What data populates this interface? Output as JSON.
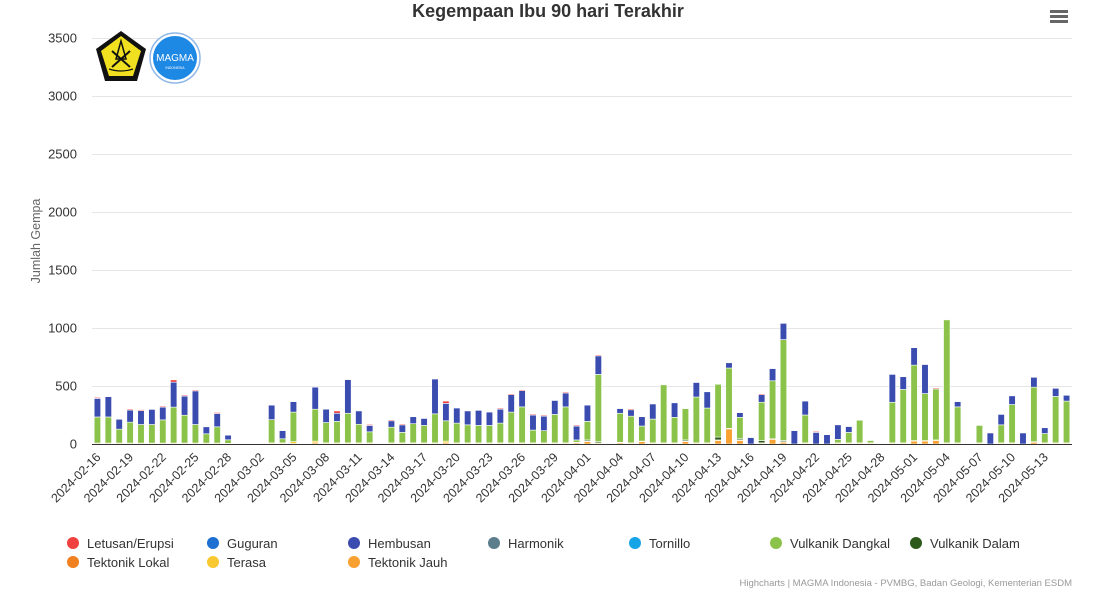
{
  "chart_data": {
    "type": "bar",
    "stacked": true,
    "title": "Kegempaan Ibu 90 hari Terakhir",
    "xlabel": "",
    "ylabel": "Jumlah Gempa",
    "ylim": [
      0,
      3500
    ],
    "yticks": [
      0,
      500,
      1000,
      1500,
      2000,
      2500,
      3000,
      3500
    ],
    "grid": true,
    "legend_position": "bottom",
    "start_date": "2024-02-16",
    "x_tick_labels": [
      "2024-02-16",
      "2024-02-19",
      "2024-02-22",
      "2024-02-25",
      "2024-02-28",
      "2024-03-02",
      "2024-03-05",
      "2024-03-08",
      "2024-03-11",
      "2024-03-14",
      "2024-03-17",
      "2024-03-20",
      "2024-03-23",
      "2024-03-26",
      "2024-03-29",
      "2024-04-01",
      "2024-04-04",
      "2024-04-07",
      "2024-04-10",
      "2024-04-13",
      "2024-04-16",
      "2024-04-19",
      "2024-04-22",
      "2024-04-25",
      "2024-04-28",
      "2024-05-01",
      "2024-05-04",
      "2024-05-07",
      "2024-05-10",
      "2024-05-13"
    ],
    "x_tick_interval_days": 3,
    "series": [
      {
        "name": "Letusan/Erupsi",
        "color": "#f04040",
        "values": [
          5,
          0,
          0,
          3,
          3,
          0,
          3,
          20,
          5,
          5,
          0,
          3,
          0,
          0,
          0,
          0,
          0,
          0,
          0,
          0,
          0,
          0,
          20,
          0,
          0,
          3,
          0,
          3,
          3,
          0,
          0,
          0,
          20,
          0,
          0,
          0,
          0,
          3,
          3,
          8,
          3,
          3,
          0,
          3,
          3,
          0,
          3,
          0,
          0,
          2,
          0,
          0,
          0,
          0,
          0,
          0,
          0,
          0,
          0,
          0,
          0,
          3,
          0,
          0,
          0,
          0,
          3,
          0,
          0,
          0,
          0,
          0,
          0,
          0,
          0,
          0,
          0,
          3,
          0,
          0,
          0,
          0,
          0,
          0,
          0,
          0,
          0,
          0,
          0,
          0
        ]
      },
      {
        "name": "Guguran",
        "color": "#1d6fd1",
        "values": [
          0,
          0,
          0,
          0,
          0,
          0,
          0,
          0,
          0,
          0,
          0,
          0,
          0,
          0,
          0,
          0,
          0,
          0,
          0,
          0,
          0,
          0,
          0,
          0,
          0,
          0,
          0,
          0,
          0,
          0,
          0,
          0,
          0,
          0,
          0,
          0,
          0,
          0,
          0,
          0,
          0,
          0,
          0,
          0,
          0,
          0,
          0,
          0,
          0,
          0,
          0,
          0,
          0,
          0,
          0,
          0,
          0,
          0,
          0,
          0,
          0,
          0,
          0,
          0,
          0,
          0,
          0,
          0,
          0,
          0,
          0,
          0,
          0,
          0,
          0,
          0,
          0,
          0,
          0,
          0,
          0,
          0,
          0,
          0,
          0,
          0,
          0,
          0,
          0,
          0
        ]
      },
      {
        "name": "Hembusan",
        "color": "#3a4cb0",
        "values": [
          160,
          175,
          85,
          105,
          120,
          130,
          110,
          215,
          165,
          290,
          60,
          115,
          40,
          0,
          0,
          0,
          125,
          70,
          90,
          0,
          190,
          115,
          70,
          290,
          115,
          55,
          0,
          55,
          65,
          60,
          60,
          300,
          150,
          130,
          120,
          130,
          115,
          120,
          150,
          140,
          130,
          125,
          120,
          120,
          120,
          140,
          160,
          0,
          40,
          55,
          80,
          130,
          0,
          125,
          0,
          125,
          140,
          0,
          45,
          40,
          55,
          65,
          105,
          140,
          115,
          120,
          100,
          80,
          125,
          50,
          0,
          0,
          0,
          240,
          110,
          150,
          250,
          0,
          0,
          45,
          0,
          0,
          95,
          90,
          75,
          95,
          85,
          50,
          70,
          50
        ]
      },
      {
        "name": "Harmonik",
        "color": "#5c7d8c",
        "values": [
          0,
          0,
          0,
          0,
          0,
          0,
          0,
          0,
          0,
          0,
          0,
          0,
          0,
          0,
          0,
          0,
          0,
          0,
          0,
          0,
          0,
          0,
          0,
          0,
          0,
          0,
          0,
          0,
          0,
          0,
          0,
          0,
          0,
          0,
          0,
          0,
          0,
          0,
          0,
          0,
          0,
          0,
          0,
          0,
          0,
          0,
          0,
          0,
          0,
          0,
          0,
          0,
          0,
          0,
          0,
          0,
          0,
          0,
          0,
          0,
          0,
          0,
          0,
          0,
          0,
          0,
          0,
          0,
          0,
          0,
          0,
          0,
          0,
          0,
          0,
          0,
          0,
          0,
          0,
          0,
          0,
          0,
          0,
          0,
          0,
          0,
          0,
          0,
          0,
          0
        ]
      },
      {
        "name": "Tornillo",
        "color": "#17a5e8",
        "values": [
          0,
          0,
          0,
          0,
          0,
          0,
          0,
          0,
          0,
          0,
          0,
          0,
          0,
          0,
          0,
          0,
          0,
          0,
          0,
          0,
          0,
          0,
          0,
          0,
          0,
          0,
          0,
          0,
          0,
          0,
          0,
          0,
          0,
          0,
          0,
          0,
          0,
          0,
          0,
          0,
          0,
          0,
          0,
          0,
          0,
          0,
          0,
          0,
          0,
          0,
          0,
          0,
          0,
          0,
          0,
          0,
          0,
          0,
          0,
          0,
          0,
          0,
          0,
          0,
          0,
          0,
          0,
          0,
          0,
          0,
          0,
          0,
          0,
          0,
          0,
          0,
          0,
          0,
          0,
          0,
          0,
          0,
          0,
          0,
          0,
          0,
          0,
          0,
          0,
          0
        ]
      },
      {
        "name": "Vulkanik Dangkal",
        "color": "#8bc34a",
        "values": [
          225,
          225,
          120,
          180,
          160,
          160,
          200,
          310,
          240,
          160,
          80,
          140,
          30,
          0,
          0,
          0,
          200,
          35,
          255,
          0,
          275,
          175,
          185,
          255,
          160,
          95,
          0,
          135,
          90,
          165,
          150,
          250,
          175,
          170,
          155,
          150,
          150,
          170,
          265,
          310,
          110,
          105,
          245,
          310,
          20,
          160,
          580,
          0,
          250,
          230,
          130,
          205,
          500,
          220,
          270,
          395,
          300,
          455,
          520,
          185,
          0,
          330,
          500,
          870,
          0,
          240,
          0,
          0,
          30,
          90,
          195,
          20,
          0,
          350,
          460,
          650,
          405,
          440,
          1060,
          310,
          0,
          150,
          0,
          155,
          330,
          0,
          470,
          80,
          400,
          360
        ]
      },
      {
        "name": "Vulkanik Dalam",
        "color": "#2d5a1b",
        "values": [
          0,
          0,
          0,
          0,
          0,
          0,
          0,
          0,
          0,
          0,
          0,
          0,
          0,
          0,
          0,
          0,
          0,
          0,
          0,
          0,
          0,
          0,
          0,
          0,
          0,
          0,
          0,
          0,
          0,
          0,
          0,
          0,
          0,
          0,
          0,
          0,
          0,
          0,
          0,
          0,
          0,
          0,
          0,
          0,
          0,
          10,
          10,
          0,
          0,
          0,
          0,
          0,
          0,
          0,
          10,
          0,
          0,
          25,
          0,
          10,
          0,
          20,
          0,
          10,
          0,
          0,
          0,
          0,
          0,
          0,
          0,
          0,
          0,
          0,
          0,
          0,
          0,
          0,
          0,
          0,
          0,
          0,
          0,
          0,
          0,
          0,
          0,
          0,
          0,
          0
        ]
      },
      {
        "name": "Tektonik Lokal",
        "color": "#f08020",
        "values": [
          0,
          0,
          0,
          0,
          0,
          0,
          0,
          0,
          0,
          0,
          0,
          0,
          0,
          0,
          0,
          0,
          0,
          0,
          0,
          0,
          0,
          0,
          0,
          0,
          0,
          0,
          0,
          0,
          0,
          0,
          0,
          0,
          0,
          0,
          0,
          0,
          0,
          0,
          0,
          0,
          0,
          0,
          0,
          0,
          0,
          0,
          0,
          0,
          0,
          0,
          0,
          0,
          0,
          0,
          0,
          0,
          0,
          0,
          0,
          0,
          0,
          0,
          0,
          0,
          0,
          0,
          0,
          0,
          0,
          0,
          0,
          0,
          0,
          0,
          0,
          0,
          0,
          0,
          0,
          0,
          0,
          0,
          0,
          0,
          0,
          0,
          0,
          0,
          0,
          0
        ]
      },
      {
        "name": "Terasa",
        "color": "#f8c830",
        "values": [
          3,
          3,
          3,
          3,
          3,
          3,
          3,
          3,
          3,
          3,
          3,
          3,
          3,
          0,
          0,
          0,
          5,
          5,
          15,
          0,
          15,
          5,
          5,
          5,
          5,
          5,
          0,
          5,
          5,
          5,
          5,
          5,
          15,
          5,
          5,
          5,
          5,
          5,
          5,
          5,
          5,
          5,
          5,
          5,
          5,
          5,
          5,
          0,
          5,
          5,
          5,
          5,
          5,
          5,
          5,
          5,
          5,
          5,
          5,
          5,
          0,
          5,
          5,
          5,
          0,
          5,
          0,
          0,
          5,
          5,
          5,
          5,
          0,
          5,
          5,
          5,
          5,
          5,
          5,
          5,
          0,
          5,
          0,
          5,
          5,
          0,
          5,
          5,
          5,
          5
        ]
      },
      {
        "name": "Tektonik Jauh",
        "color": "#f8a030",
        "values": [
          5,
          5,
          5,
          5,
          5,
          5,
          5,
          5,
          5,
          5,
          5,
          5,
          3,
          0,
          0,
          0,
          5,
          5,
          5,
          0,
          10,
          5,
          5,
          5,
          5,
          5,
          0,
          5,
          5,
          5,
          5,
          5,
          10,
          5,
          5,
          5,
          5,
          5,
          5,
          5,
          5,
          5,
          5,
          5,
          10,
          20,
          5,
          0,
          10,
          5,
          20,
          5,
          5,
          5,
          20,
          5,
          5,
          30,
          130,
          30,
          0,
          5,
          40,
          15,
          0,
          5,
          0,
          0,
          5,
          5,
          5,
          5,
          0,
          5,
          5,
          25,
          25,
          30,
          5,
          5,
          0,
          5,
          0,
          5,
          5,
          0,
          15,
          5,
          5,
          5
        ]
      }
    ]
  },
  "branding": {
    "logo_left": "Kementerian ESDM",
    "logo_right": "MAGMA"
  },
  "credits": "Highcharts | MAGMA Indonesia - PVMBG, Badan Geologi, Kementerian ESDM",
  "menu": {
    "icon": "hamburger-menu-icon"
  }
}
